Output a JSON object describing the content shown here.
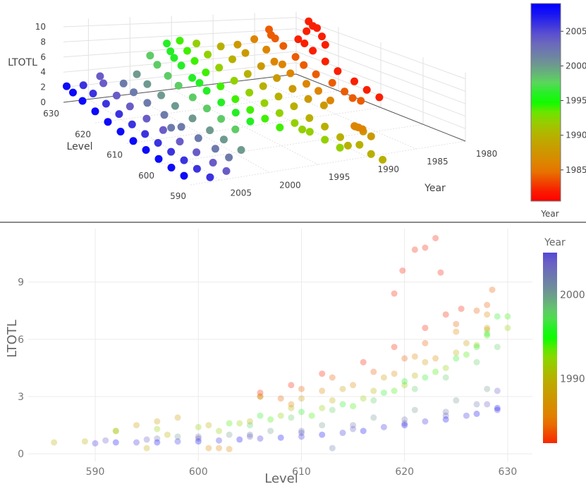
{
  "chart_data": [
    {
      "type": "scatter3d",
      "axes": {
        "x": {
          "title": "Level",
          "ticks": [
            590,
            600,
            610,
            620,
            630
          ],
          "range": [
            590,
            630
          ]
        },
        "y": {
          "title": "Year",
          "ticks": [
            1980,
            1985,
            1990,
            1995,
            2000,
            2005
          ],
          "range": [
            1980,
            2008
          ]
        },
        "z": {
          "title": "LTOTL",
          "ticks": [
            0,
            2,
            4,
            6,
            8,
            10
          ],
          "range": [
            0,
            11
          ]
        }
      },
      "colorbar": {
        "title": "Year",
        "ticks": [
          1985,
          1990,
          1995,
          2000,
          2005
        ],
        "range": [
          1980.5,
          2009
        ]
      },
      "marker_opacity": 1
    },
    {
      "type": "scatter",
      "xlabel": "Level",
      "ylabel": "LTOTL",
      "xticks": [
        590,
        600,
        610,
        620,
        630
      ],
      "yticks": [
        0,
        3,
        6,
        9
      ],
      "xlim": [
        583.5,
        632.4
      ],
      "ylim": [
        -0.4,
        11.8
      ],
      "grid": true,
      "colorbar": {
        "title": "Year",
        "ticks": [
          1990,
          2000
        ],
        "range": [
          1982.3,
          2005
        ]
      },
      "marker_opacity": 0.3
    }
  ],
  "colorscale": [
    {
      "year": 1981,
      "color": "#ff0000"
    },
    {
      "year": 1985,
      "color": "#e67a00"
    },
    {
      "year": 1990,
      "color": "#b8b000"
    },
    {
      "year": 1993,
      "color": "#80e000"
    },
    {
      "year": 1995,
      "color": "#00ff00"
    },
    {
      "year": 1997.5,
      "color": "#5ad85a"
    },
    {
      "year": 2000,
      "color": "#6f9a8f"
    },
    {
      "year": 2004,
      "color": "#6a5cc8"
    },
    {
      "year": 2008.5,
      "color": "#0000ff"
    }
  ],
  "series": [
    {
      "year": 1982,
      "points": [
        [
          606,
          3.2
        ],
        [
          609,
          3.6
        ],
        [
          612,
          4.2
        ],
        [
          616,
          4.8
        ],
        [
          619,
          5.6
        ],
        [
          622,
          6.6
        ],
        [
          624,
          7.3
        ],
        [
          625.5,
          7.6
        ],
        [
          619,
          8.4
        ],
        [
          619.8,
          9.6
        ],
        [
          621,
          10.7
        ],
        [
          622,
          10.8
        ],
        [
          623,
          11.3
        ],
        [
          623.5,
          9.5
        ]
      ]
    },
    {
      "year": 1984,
      "points": [
        [
          606,
          3.0
        ],
        [
          608,
          2.9
        ],
        [
          610,
          3.4
        ],
        [
          613,
          4.0
        ],
        [
          617,
          4.3
        ],
        [
          620,
          5.0
        ],
        [
          622,
          5.8
        ],
        [
          625,
          6.8
        ],
        [
          627,
          7.5
        ],
        [
          628,
          7.8
        ],
        [
          628.5,
          8.6
        ]
      ]
    },
    {
      "year": 1986,
      "points": [
        [
          601,
          0.3
        ],
        [
          602,
          0.3
        ],
        [
          603,
          0.25
        ],
        [
          609,
          2.6
        ],
        [
          612,
          3.3
        ],
        [
          615,
          3.6
        ],
        [
          619,
          4.2
        ],
        [
          621,
          5.1
        ],
        [
          623,
          5.0
        ],
        [
          625,
          6.4
        ],
        [
          628,
          7.3
        ]
      ]
    },
    {
      "year": 1988,
      "points": [
        [
          594,
          1.5
        ],
        [
          596,
          1.7
        ],
        [
          598,
          1.9
        ],
        [
          606,
          3.0
        ],
        [
          610,
          2.9
        ],
        [
          614,
          3.4
        ],
        [
          618,
          4.0
        ],
        [
          622,
          4.8
        ],
        [
          626,
          5.8
        ],
        [
          628,
          6.6
        ]
      ]
    },
    {
      "year": 1990,
      "points": [
        [
          586,
          0.6
        ],
        [
          589,
          0.65
        ],
        [
          592,
          1.2
        ],
        [
          595,
          0.3
        ],
        [
          597,
          1.0
        ],
        [
          601,
          1.5
        ],
        [
          605,
          1.7
        ],
        [
          609,
          2.4
        ],
        [
          613,
          2.8
        ],
        [
          617,
          3.3
        ],
        [
          621,
          4.1
        ],
        [
          625,
          5.3
        ],
        [
          628,
          6.5
        ]
      ]
    },
    {
      "year": 1992,
      "points": [
        [
          592,
          1.2
        ],
        [
          596,
          1.3
        ],
        [
          600,
          1.4
        ],
        [
          602,
          1.2
        ],
        [
          604,
          1.6
        ],
        [
          608,
          2.0
        ],
        [
          612,
          2.4
        ],
        [
          616,
          2.9
        ],
        [
          620,
          3.6
        ],
        [
          624,
          4.5
        ],
        [
          627,
          5.7
        ],
        [
          630,
          6.6
        ]
      ]
    },
    {
      "year": 1994,
      "points": [
        [
          603,
          1.6
        ],
        [
          607,
          1.8
        ],
        [
          611,
          2.0
        ],
        [
          615,
          2.5
        ],
        [
          619,
          3.3
        ],
        [
          623,
          4.3
        ],
        [
          626,
          5.2
        ],
        [
          628,
          6.2
        ],
        [
          630,
          7.2
        ]
      ]
    },
    {
      "year": 1996,
      "points": [
        [
          606,
          2.0
        ],
        [
          610,
          2.2
        ],
        [
          614,
          2.6
        ],
        [
          618,
          3.2
        ],
        [
          620,
          3.8
        ],
        [
          622,
          4.0
        ],
        [
          625,
          5.0
        ],
        [
          627,
          5.6
        ],
        [
          628,
          6.3
        ],
        [
          629,
          7.2
        ]
      ]
    },
    {
      "year": 1998,
      "points": [
        [
          605,
          1.5
        ],
        [
          609,
          1.9
        ],
        [
          613,
          2.3
        ],
        [
          617,
          2.8
        ],
        [
          621,
          3.4
        ],
        [
          624,
          4.0
        ],
        [
          627,
          4.8
        ],
        [
          629,
          5.6
        ]
      ]
    },
    {
      "year": 2000,
      "points": [
        [
          598,
          0.9
        ],
        [
          603,
          1.0
        ],
        [
          607,
          1.2
        ],
        [
          612,
          1.5
        ],
        [
          617,
          1.9
        ],
        [
          621,
          2.3
        ],
        [
          625,
          2.8
        ],
        [
          628,
          3.4
        ]
      ]
    },
    {
      "year": 2002,
      "points": [
        [
          596,
          0.8
        ],
        [
          600,
          0.9
        ],
        [
          605,
          1.0
        ],
        [
          610,
          1.2
        ],
        [
          613,
          0.3
        ],
        [
          615,
          1.5
        ],
        [
          620,
          1.8
        ],
        [
          624,
          2.2
        ],
        [
          627,
          2.6
        ]
      ]
    },
    {
      "year": 2004,
      "points": [
        [
          591,
          0.7
        ],
        [
          595,
          0.75
        ],
        [
          600,
          0.8
        ],
        [
          605,
          0.9
        ],
        [
          610,
          1.1
        ],
        [
          615,
          1.3
        ],
        [
          620,
          1.6
        ],
        [
          624,
          2.0
        ],
        [
          628,
          2.6
        ],
        [
          629,
          3.3
        ]
      ]
    },
    {
      "year": 2006,
      "points": [
        [
          590,
          0.55
        ],
        [
          594,
          0.6
        ],
        [
          598,
          0.65
        ],
        [
          602,
          0.7
        ],
        [
          606,
          0.8
        ],
        [
          610,
          0.9
        ],
        [
          614,
          1.1
        ],
        [
          618,
          1.4
        ],
        [
          622,
          1.7
        ],
        [
          626,
          2.0
        ],
        [
          629,
          2.3
        ]
      ]
    },
    {
      "year": 2008,
      "points": [
        [
          592,
          0.6
        ],
        [
          596,
          0.6
        ],
        [
          600,
          0.65
        ],
        [
          604,
          0.75
        ],
        [
          608,
          0.85
        ],
        [
          612,
          1.0
        ],
        [
          616,
          1.2
        ],
        [
          620,
          1.5
        ],
        [
          624,
          1.8
        ],
        [
          627,
          2.1
        ],
        [
          629,
          2.4
        ]
      ]
    }
  ]
}
